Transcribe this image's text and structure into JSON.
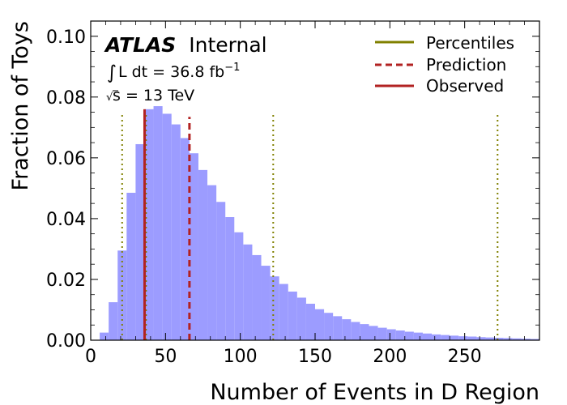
{
  "chart_data": {
    "type": "bar",
    "subtype": "histogram",
    "xlabel": "Number of Events in D Region",
    "ylabel": "Fraction of Toys",
    "xlim": [
      0,
      300
    ],
    "ylim": [
      0,
      0.105
    ],
    "xticks": [
      "0",
      "50",
      "100",
      "150",
      "200",
      "250"
    ],
    "xtick_values": [
      0,
      50,
      100,
      150,
      200,
      250
    ],
    "yticks": [
      "0.00",
      "0.02",
      "0.04",
      "0.06",
      "0.08",
      "0.10"
    ],
    "ytick_values": [
      0.0,
      0.02,
      0.04,
      0.06,
      0.08,
      0.1
    ],
    "grid": false,
    "legend_position": "top-right",
    "annotation": {
      "experiment": "ATLAS",
      "status": "Internal",
      "lumi_prefix": "L dt = 36.8 fb",
      "lumi_sup": "−1",
      "energy": "s = 13 TeV"
    },
    "histogram": {
      "bin_width": 6,
      "bin_edges_start": 6,
      "values": [
        0.0025,
        0.0125,
        0.0295,
        0.0485,
        0.0645,
        0.076,
        0.077,
        0.0745,
        0.071,
        0.0665,
        0.0615,
        0.056,
        0.051,
        0.0455,
        0.0405,
        0.0355,
        0.0315,
        0.028,
        0.0245,
        0.021,
        0.0185,
        0.016,
        0.014,
        0.012,
        0.0102,
        0.009,
        0.0079,
        0.0069,
        0.006,
        0.0053,
        0.0047,
        0.0041,
        0.0036,
        0.0032,
        0.0028,
        0.0025,
        0.0022,
        0.0019,
        0.0017,
        0.0015,
        0.0013,
        0.0012,
        0.001,
        0.0009,
        0.0008,
        0.0007,
        0.0006,
        0.0005,
        0.0004
      ],
      "color": "#9c9cff"
    },
    "series": [
      {
        "name": "Percentiles",
        "style": "dotted",
        "color": "#808000",
        "x": [
          21,
          37,
          122,
          272
        ],
        "ymax": 0.075
      },
      {
        "name": "Prediction",
        "style": "dashed",
        "color": "#b22222",
        "x": [
          66
        ],
        "ymax": 0.0735
      },
      {
        "name": "Observed",
        "style": "solid",
        "color": "#b22222",
        "x": [
          36
        ],
        "ymax": 0.076
      }
    ],
    "legend_colors": {
      "Percentiles": "#808000",
      "Prediction": "#b22222",
      "Observed": "#b22222"
    }
  }
}
